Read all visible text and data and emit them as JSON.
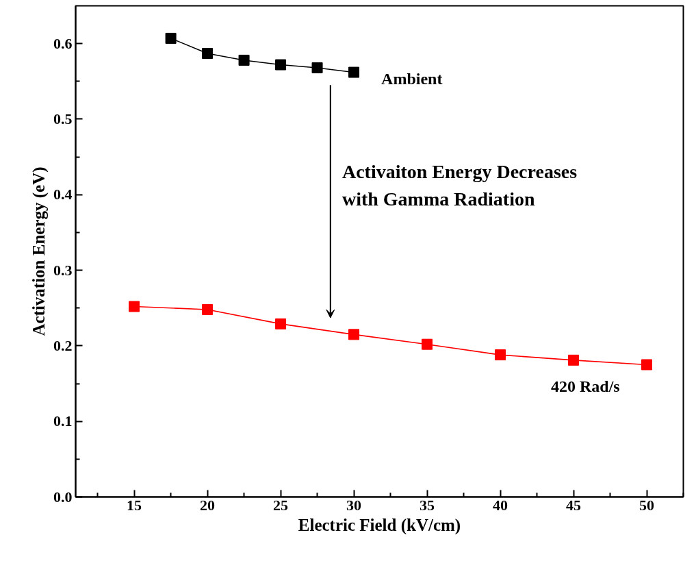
{
  "chart_data": {
    "type": "line",
    "xlabel": "Electric Field (kV/cm)",
    "ylabel": "Activation Energy (eV)",
    "xlim": [
      11,
      52.5
    ],
    "xticks": [
      15,
      20,
      25,
      30,
      35,
      40,
      45,
      50
    ],
    "ylim": [
      0,
      0.65
    ],
    "yticks": [
      {
        "value": 0,
        "label": "0.0"
      },
      0.1,
      0.2,
      0.3,
      0.4,
      0.5,
      0.6
    ],
    "marker": "square",
    "line_style": "solid",
    "grid": false,
    "annotations": [
      "Activaiton Energy Decreases\nwith Gamma Radiation"
    ],
    "series": [
      {
        "name": "Ambient",
        "color": "#000000",
        "x": [
          17.5,
          20,
          22.5,
          25,
          27.5,
          30
        ],
        "values": [
          0.607,
          0.587,
          0.578,
          0.572,
          0.568,
          0.562
        ]
      },
      {
        "name": "420 Rad/s",
        "color": "#ff0000",
        "x": [
          15,
          20,
          25,
          30,
          35,
          40,
          45,
          50
        ],
        "values": [
          0.252,
          0.248,
          0.229,
          0.215,
          0.202,
          0.188,
          0.181,
          0.175
        ]
      }
    ]
  }
}
